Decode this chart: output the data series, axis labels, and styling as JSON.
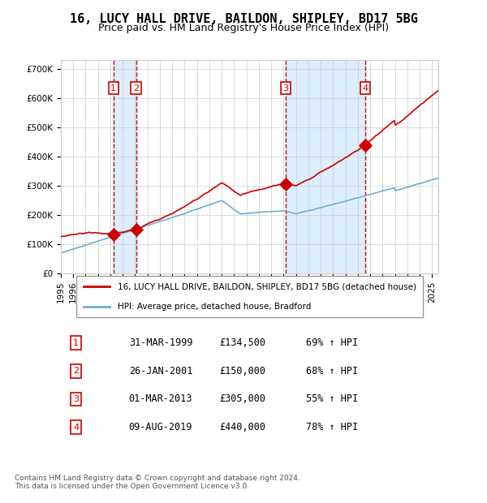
{
  "title": "16, LUCY HALL DRIVE, BAILDON, SHIPLEY, BD17 5BG",
  "subtitle": "Price paid vs. HM Land Registry's House Price Index (HPI)",
  "legend_line1": "16, LUCY HALL DRIVE, BAILDON, SHIPLEY, BD17 5BG (detached house)",
  "legend_line2": "HPI: Average price, detached house, Bradford",
  "footer1": "Contains HM Land Registry data © Crown copyright and database right 2024.",
  "footer2": "This data is licensed under the Open Government Licence v3.0.",
  "sales": [
    {
      "num": 1,
      "date": "31-MAR-1999",
      "price": 134500,
      "pct": "69%",
      "year": 1999.25
    },
    {
      "num": 2,
      "date": "26-JAN-2001",
      "price": 150000,
      "pct": "68%",
      "year": 2001.08
    },
    {
      "num": 3,
      "date": "01-MAR-2013",
      "price": 305000,
      "pct": "55%",
      "year": 2013.17
    },
    {
      "num": 4,
      "date": "09-AUG-2019",
      "price": 440000,
      "pct": "78%",
      "year": 2019.6
    }
  ],
  "hpi_color": "#6baed6",
  "price_color": "#cc0000",
  "sale_dot_color": "#cc0000",
  "vspan_color": "#ddeeff",
  "vline_color": "#cc0000",
  "grid_color": "#cccccc",
  "ylim": [
    0,
    730000
  ],
  "xlim_start": 1995,
  "xlim_end": 2025.5
}
